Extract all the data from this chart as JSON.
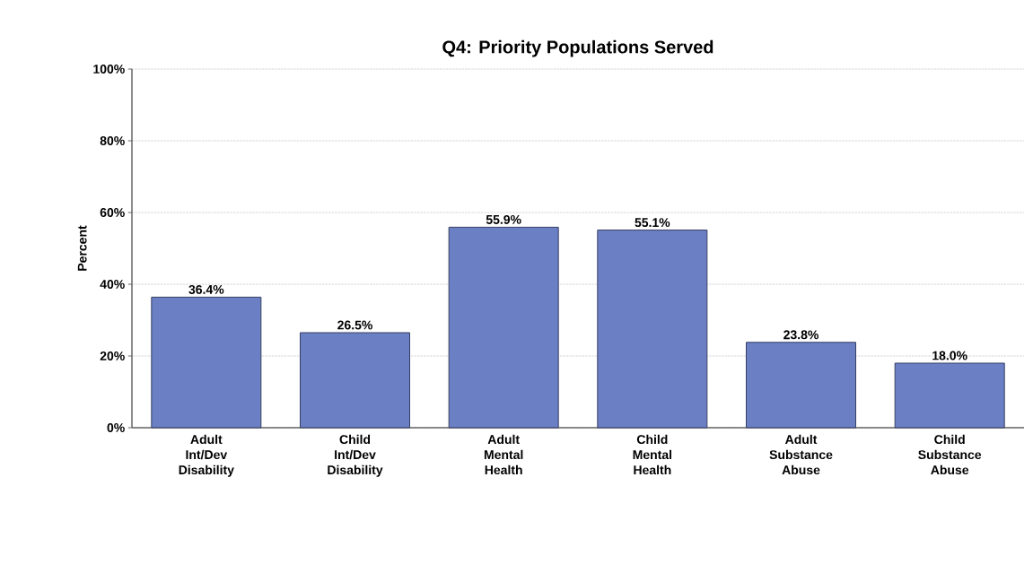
{
  "chart_data": {
    "type": "bar",
    "title": "Q4: Priority Populations Served",
    "ylabel": "Percent",
    "categories": [
      "Adult Int/Dev Disability",
      "Child Int/Dev Disability",
      "Adult Mental Health",
      "Child Mental Health",
      "Adult Substance Abuse",
      "Child Substance Abuse"
    ],
    "values": [
      36.4,
      26.5,
      55.9,
      55.1,
      23.8,
      18.0
    ],
    "value_labels": [
      "36.4%",
      "26.5%",
      "55.9%",
      "55.1%",
      "23.8%",
      "18.0%"
    ],
    "color": "#6b7fc4",
    "ylim": [
      0,
      100
    ],
    "yticks": [
      {
        "value": 0,
        "label": "0%"
      },
      {
        "value": 20,
        "label": "20%"
      },
      {
        "value": 40,
        "label": "40%"
      },
      {
        "value": 60,
        "label": "60%"
      },
      {
        "value": 80,
        "label": "80%"
      },
      {
        "value": 100,
        "label": "100%"
      }
    ],
    "grid": "y"
  }
}
